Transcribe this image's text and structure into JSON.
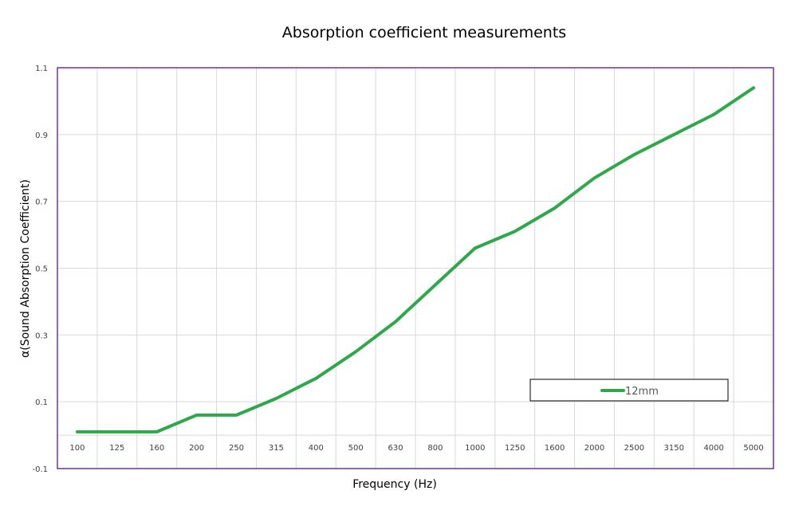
{
  "chart_data": {
    "type": "line",
    "title": "Absorption coefficient measurements",
    "xlabel": "Frequency (Hz)",
    "ylabel": "α(Sound Absorption Coefficient)",
    "categories": [
      "100",
      "125",
      "160",
      "200",
      "250",
      "315",
      "400",
      "500",
      "630",
      "800",
      "1000",
      "1250",
      "1600",
      "2000",
      "2500",
      "3150",
      "4000",
      "5000"
    ],
    "series": [
      {
        "name": "12mm",
        "color": "#2ea84a",
        "values": [
          0.01,
          0.01,
          0.01,
          0.06,
          0.06,
          0.11,
          0.17,
          0.25,
          0.34,
          0.45,
          0.56,
          0.61,
          0.68,
          0.77,
          0.84,
          0.9,
          0.96,
          1.04
        ]
      }
    ],
    "ylim": [
      -0.1,
      1.1
    ],
    "yticks": [
      "-0.1",
      "0.1",
      "0.3",
      "0.5",
      "0.7",
      "0.9",
      "1.1"
    ],
    "grid": true,
    "legend_position": "bottom-right",
    "frame_color": "#7030a0",
    "grid_color": "#d9d9d9"
  }
}
